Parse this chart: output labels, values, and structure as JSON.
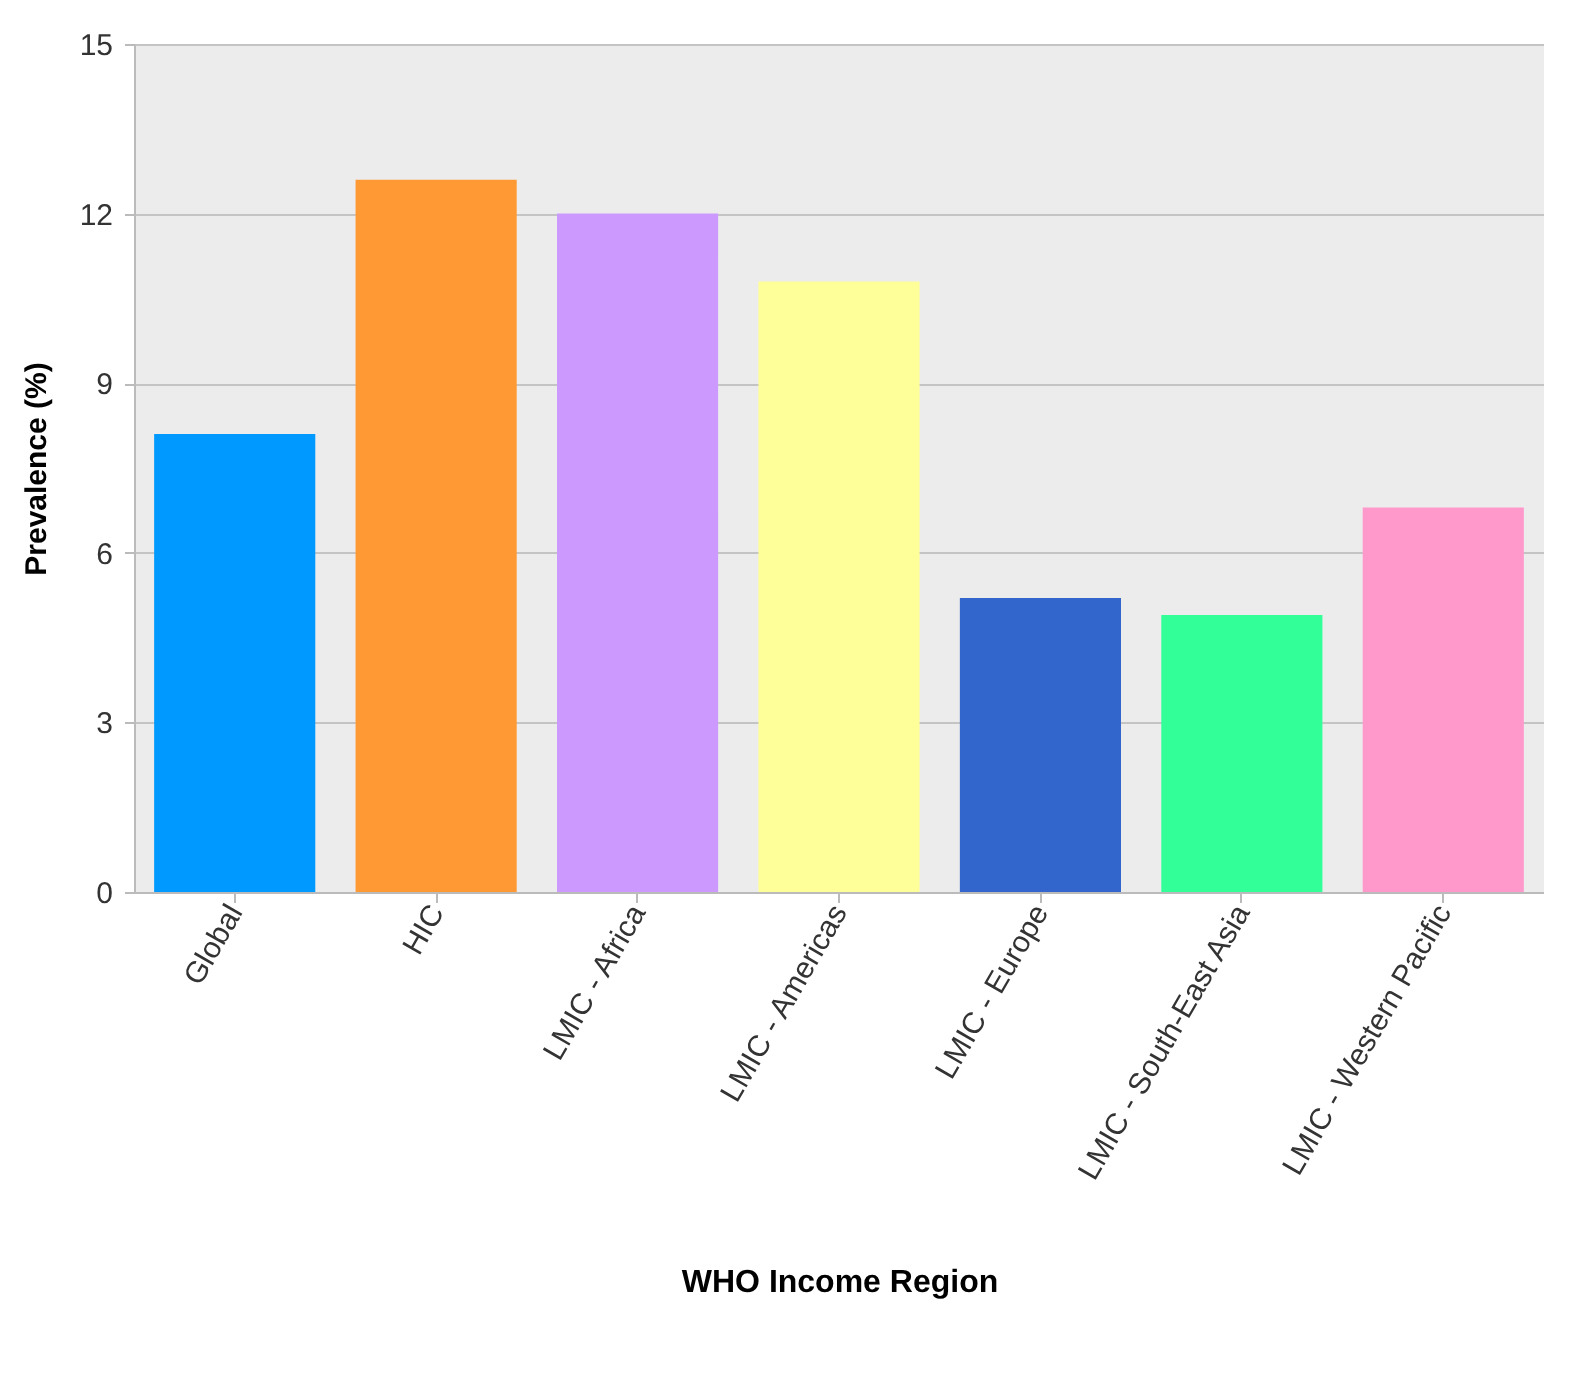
{
  "chart_data": {
    "type": "bar",
    "xlabel": "WHO Income Region",
    "ylabel": "Prevalence (%)",
    "categories": [
      "Global",
      "HIC",
      "LMIC - Africa",
      "LMIC - Americas",
      "LMIC - Europe",
      "LMIC - South-East Asia",
      "LMIC - Western Pacific"
    ],
    "values": [
      8.1,
      12.6,
      12.0,
      10.8,
      5.2,
      4.9,
      6.8
    ],
    "colors": [
      "#0099ff",
      "#ff9933",
      "#cc99ff",
      "#ffff99",
      "#3366cc",
      "#33ff99",
      "#ff99cc"
    ],
    "ylim": [
      0,
      15
    ],
    "yticks": [
      0,
      3,
      6,
      9,
      12,
      15
    ],
    "grid": "y",
    "legend": false
  }
}
